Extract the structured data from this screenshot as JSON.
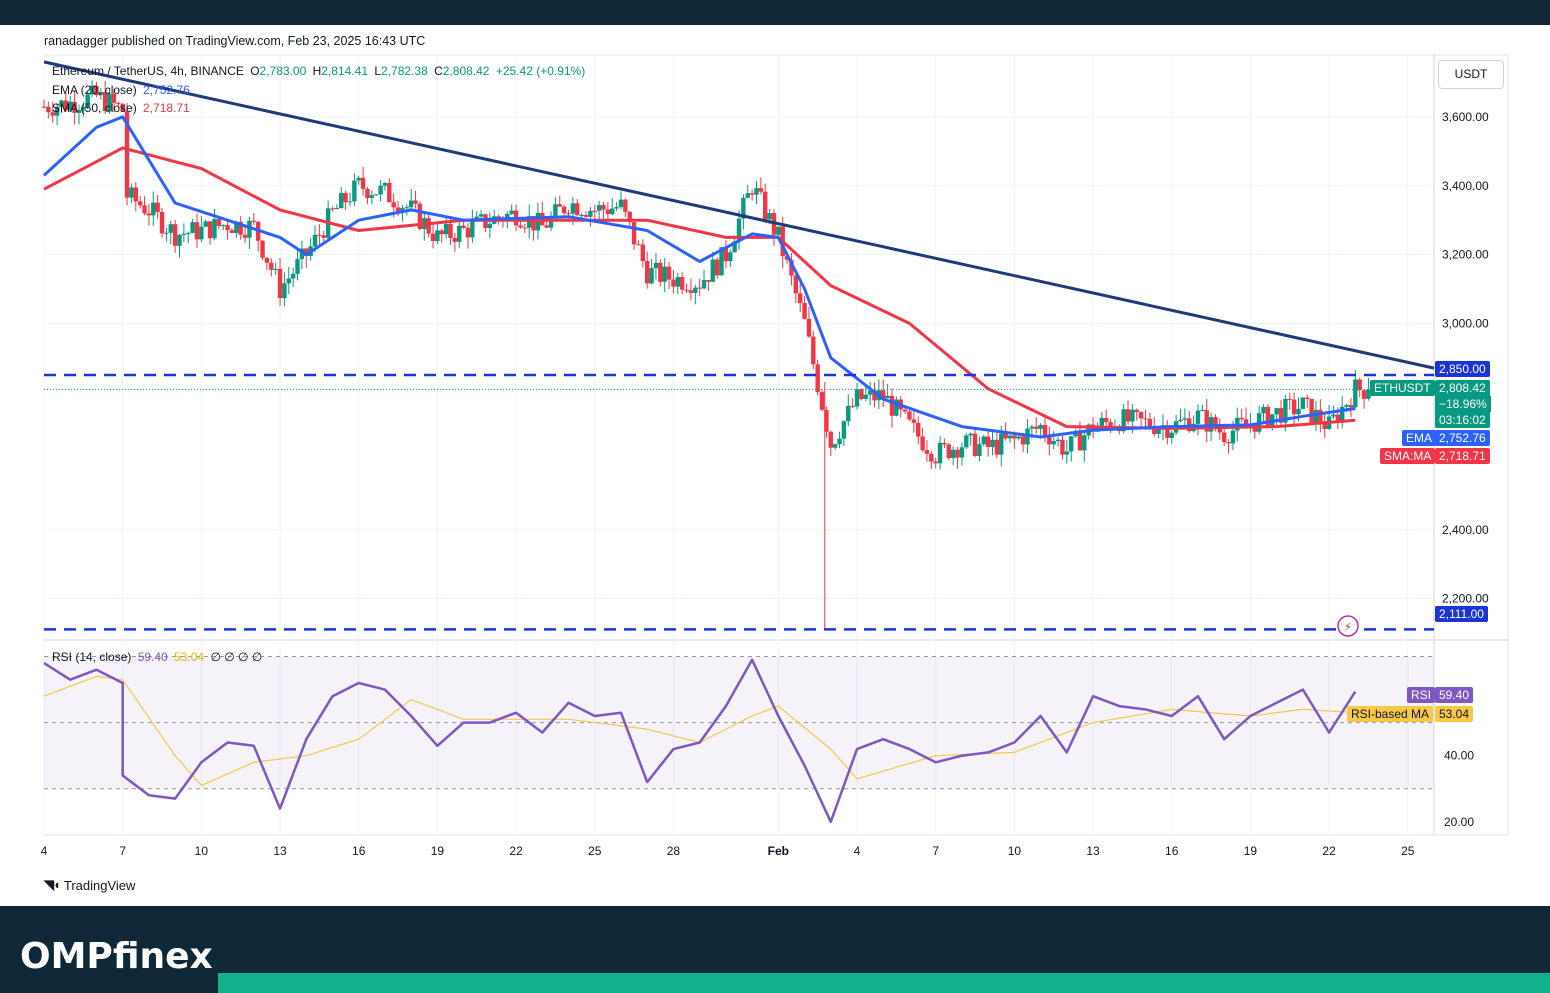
{
  "header": {
    "publisher": "ranadagger published on TradingView.com, Feb 23, 2025 16:43 UTC"
  },
  "legend": {
    "symbol": "Ethereum / TetherUS, 4h, BINANCE",
    "open_label": "O",
    "open": "2,783.00",
    "high_label": "H",
    "high": "2,814.41",
    "low_label": "L",
    "low": "2,782.38",
    "close_label": "C",
    "close": "2,808.42",
    "change": "+25.42 (+0.91%)",
    "ema_label": "EMA (20, close)",
    "ema_value": "2,752.76",
    "sma_label": "SMA (50, close)",
    "sma_value": "2,718.71",
    "rsi_label": "RSI (14, close)",
    "rsi_value": "59.40",
    "rsi_ma_value": "53.04",
    "rsi_extra": "∅ ∅ ∅ ∅"
  },
  "currency": "USDT",
  "price_tags": {
    "resistance": "2,850.00",
    "ethusdt_label": "ETHUSDT",
    "last": "2,808.42",
    "change_pct": "−18.96%",
    "countdown": "03:16:02",
    "ema_label": "EMA",
    "ema": "2,752.76",
    "sma_label": "SMA:MA",
    "sma": "2,718.71",
    "support": "2,111.00",
    "rsi_label": "RSI",
    "rsi": "59.40",
    "rsi_ma_label": "RSI-based MA",
    "rsi_ma": "53.04"
  },
  "colors": {
    "up": "#089981",
    "down": "#f23645",
    "ema": "#2962ff",
    "sma": "#f23645",
    "trendline": "#1f3a7a",
    "levels": "#1a34d6",
    "rsi": "#7e57c2",
    "rsi_ma": "#f7c948"
  },
  "chart_data": [
    {
      "type": "candlestick",
      "title": "Ethereum / TetherUS, 4h, BINANCE",
      "y_axis_ticks": [
        "3,600.00",
        "3,400.00",
        "3,200.00",
        "3,000.00",
        "2,400.00",
        "2,200.00"
      ],
      "x_axis_ticks": [
        "4",
        "7",
        "10",
        "13",
        "16",
        "19",
        "22",
        "25",
        "28",
        "Feb",
        "4",
        "7",
        "10",
        "13",
        "16",
        "19",
        "22",
        "25"
      ],
      "x_range": [
        "2025-01-04",
        "2025-02-26"
      ],
      "ylim": [
        2080,
        3780
      ],
      "grid": true,
      "close_path": [
        [
          "2025-01-04",
          3630
        ],
        [
          "2025-01-05",
          3640
        ],
        [
          "2025-01-06",
          3660
        ],
        [
          "2025-01-07",
          3620
        ],
        [
          "2025-01-07",
          3380
        ],
        [
          "2025-01-08",
          3330
        ],
        [
          "2025-01-09",
          3260
        ],
        [
          "2025-01-10",
          3270
        ],
        [
          "2025-01-11",
          3290
        ],
        [
          "2025-01-12",
          3280
        ],
        [
          "2025-01-13",
          3100
        ],
        [
          "2025-01-14",
          3200
        ],
        [
          "2025-01-15",
          3320
        ],
        [
          "2025-01-16",
          3400
        ],
        [
          "2025-01-17",
          3380
        ],
        [
          "2025-01-18",
          3330
        ],
        [
          "2025-01-19",
          3250
        ],
        [
          "2025-01-20",
          3270
        ],
        [
          "2025-01-21",
          3300
        ],
        [
          "2025-01-22",
          3320
        ],
        [
          "2025-01-23",
          3280
        ],
        [
          "2025-01-24",
          3350
        ],
        [
          "2025-01-25",
          3330
        ],
        [
          "2025-01-26",
          3340
        ],
        [
          "2025-01-27",
          3150
        ],
        [
          "2025-01-28",
          3130
        ],
        [
          "2025-01-29",
          3120
        ],
        [
          "2025-01-30",
          3200
        ],
        [
          "2025-01-31",
          3400
        ],
        [
          "2025-02-01",
          3250
        ],
        [
          "2025-02-02",
          3000
        ],
        [
          "2025-02-03",
          2650
        ],
        [
          "2025-02-04",
          2780
        ],
        [
          "2025-02-05",
          2790
        ],
        [
          "2025-02-06",
          2700
        ],
        [
          "2025-02-07",
          2620
        ],
        [
          "2025-02-08",
          2650
        ],
        [
          "2025-02-09",
          2640
        ],
        [
          "2025-02-10",
          2660
        ],
        [
          "2025-02-11",
          2700
        ],
        [
          "2025-02-12",
          2630
        ],
        [
          "2025-02-13",
          2700
        ],
        [
          "2025-02-14",
          2720
        ],
        [
          "2025-02-15",
          2710
        ],
        [
          "2025-02-16",
          2700
        ],
        [
          "2025-02-17",
          2730
        ],
        [
          "2025-02-18",
          2680
        ],
        [
          "2025-02-19",
          2710
        ],
        [
          "2025-02-20",
          2740
        ],
        [
          "2025-02-21",
          2760
        ],
        [
          "2025-02-22",
          2700
        ],
        [
          "2025-02-23",
          2808.42
        ]
      ],
      "ema20_path": [
        [
          "2025-01-04",
          3430
        ],
        [
          "2025-01-06",
          3570
        ],
        [
          "2025-01-07",
          3600
        ],
        [
          "2025-01-09",
          3350
        ],
        [
          "2025-01-11",
          3300
        ],
        [
          "2025-01-13",
          3250
        ],
        [
          "2025-01-14",
          3200
        ],
        [
          "2025-01-16",
          3300
        ],
        [
          "2025-01-18",
          3330
        ],
        [
          "2025-01-20",
          3300
        ],
        [
          "2025-01-24",
          3310
        ],
        [
          "2025-01-27",
          3270
        ],
        [
          "2025-01-29",
          3180
        ],
        [
          "2025-01-31",
          3260
        ],
        [
          "2025-02-01",
          3250
        ],
        [
          "2025-02-02",
          3100
        ],
        [
          "2025-02-03",
          2900
        ],
        [
          "2025-02-05",
          2780
        ],
        [
          "2025-02-08",
          2700
        ],
        [
          "2025-02-11",
          2670
        ],
        [
          "2025-02-13",
          2690
        ],
        [
          "2025-02-16",
          2700
        ],
        [
          "2025-02-19",
          2705
        ],
        [
          "2025-02-21",
          2730
        ],
        [
          "2025-02-23",
          2752.76
        ]
      ],
      "sma50_path": [
        [
          "2025-01-04",
          3390
        ],
        [
          "2025-01-07",
          3510
        ],
        [
          "2025-01-10",
          3450
        ],
        [
          "2025-01-13",
          3330
        ],
        [
          "2025-01-16",
          3270
        ],
        [
          "2025-01-20",
          3300
        ],
        [
          "2025-01-27",
          3300
        ],
        [
          "2025-01-30",
          3250
        ],
        [
          "2025-02-01",
          3250
        ],
        [
          "2025-02-03",
          3110
        ],
        [
          "2025-02-06",
          3000
        ],
        [
          "2025-02-09",
          2810
        ],
        [
          "2025-02-12",
          2700
        ],
        [
          "2025-02-16",
          2695
        ],
        [
          "2025-02-20",
          2700
        ],
        [
          "2025-02-23",
          2718.71
        ]
      ],
      "trendline": [
        [
          "2025-01-04",
          3760
        ],
        [
          "2025-02-26",
          2870
        ]
      ],
      "horizontal_levels": [
        2850,
        2111
      ],
      "last_price": 2808.42
    },
    {
      "type": "line",
      "title": "RSI (14, close)",
      "y_axis_ticks": [
        "40.00",
        "20.00"
      ],
      "ylim": [
        16,
        75
      ],
      "bands": [
        30,
        70
      ],
      "rsi_path": [
        [
          "2025-01-04",
          68
        ],
        [
          "2025-01-05",
          63
        ],
        [
          "2025-01-06",
          66
        ],
        [
          "2025-01-07",
          62
        ],
        [
          "2025-01-07",
          34
        ],
        [
          "2025-01-08",
          28
        ],
        [
          "2025-01-09",
          27
        ],
        [
          "2025-01-10",
          38
        ],
        [
          "2025-01-11",
          44
        ],
        [
          "2025-01-12",
          43
        ],
        [
          "2025-01-13",
          24
        ],
        [
          "2025-01-14",
          45
        ],
        [
          "2025-01-15",
          58
        ],
        [
          "2025-01-16",
          62
        ],
        [
          "2025-01-17",
          60
        ],
        [
          "2025-01-18",
          52
        ],
        [
          "2025-01-19",
          43
        ],
        [
          "2025-01-20",
          50
        ],
        [
          "2025-01-21",
          50
        ],
        [
          "2025-01-22",
          53
        ],
        [
          "2025-01-23",
          47
        ],
        [
          "2025-01-24",
          56
        ],
        [
          "2025-01-25",
          52
        ],
        [
          "2025-01-26",
          53
        ],
        [
          "2025-01-27",
          32
        ],
        [
          "2025-01-28",
          42
        ],
        [
          "2025-01-29",
          44
        ],
        [
          "2025-01-30",
          55
        ],
        [
          "2025-01-31",
          69
        ],
        [
          "2025-02-01",
          52
        ],
        [
          "2025-02-02",
          37
        ],
        [
          "2025-02-03",
          20
        ],
        [
          "2025-02-04",
          42
        ],
        [
          "2025-02-05",
          45
        ],
        [
          "2025-02-06",
          42
        ],
        [
          "2025-02-07",
          38
        ],
        [
          "2025-02-08",
          40
        ],
        [
          "2025-02-09",
          41
        ],
        [
          "2025-02-10",
          44
        ],
        [
          "2025-02-11",
          52
        ],
        [
          "2025-02-12",
          41
        ],
        [
          "2025-02-13",
          58
        ],
        [
          "2025-02-14",
          55
        ],
        [
          "2025-02-15",
          54
        ],
        [
          "2025-02-16",
          52
        ],
        [
          "2025-02-17",
          58
        ],
        [
          "2025-02-18",
          45
        ],
        [
          "2025-02-19",
          52
        ],
        [
          "2025-02-20",
          56
        ],
        [
          "2025-02-21",
          60
        ],
        [
          "2025-02-22",
          47
        ],
        [
          "2025-02-23",
          59.4
        ]
      ],
      "rsi_ma_path": [
        [
          "2025-01-04",
          58
        ],
        [
          "2025-01-06",
          64
        ],
        [
          "2025-01-07",
          63
        ],
        [
          "2025-01-09",
          40
        ],
        [
          "2025-01-10",
          31
        ],
        [
          "2025-01-12",
          38
        ],
        [
          "2025-01-14",
          40
        ],
        [
          "2025-01-16",
          45
        ],
        [
          "2025-01-18",
          57
        ],
        [
          "2025-01-20",
          51
        ],
        [
          "2025-01-24",
          51
        ],
        [
          "2025-01-27",
          48
        ],
        [
          "2025-01-29",
          44
        ],
        [
          "2025-01-31",
          52
        ],
        [
          "2025-02-01",
          55
        ],
        [
          "2025-02-03",
          42
        ],
        [
          "2025-02-04",
          33
        ],
        [
          "2025-02-07",
          40
        ],
        [
          "2025-02-10",
          41
        ],
        [
          "2025-02-13",
          50
        ],
        [
          "2025-02-16",
          54
        ],
        [
          "2025-02-19",
          52
        ],
        [
          "2025-02-21",
          54
        ],
        [
          "2025-02-23",
          53.04
        ]
      ],
      "last_rsi": 59.4,
      "last_rsi_ma": 53.04
    }
  ],
  "footer": {
    "tradingview_label": "TradingView",
    "logo_text": "OMPfinex"
  }
}
